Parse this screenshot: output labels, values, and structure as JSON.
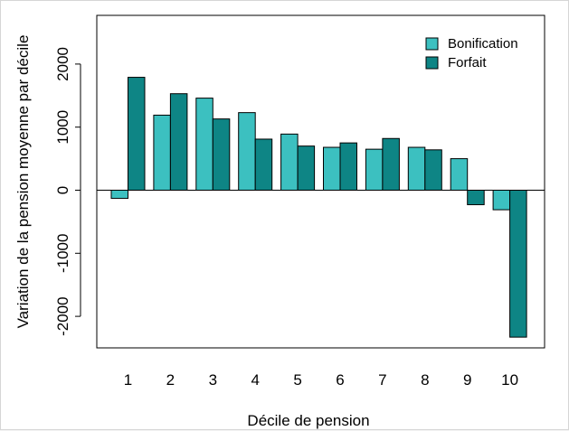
{
  "chart_data": {
    "type": "bar",
    "categories": [
      "1",
      "2",
      "3",
      "4",
      "5",
      "6",
      "7",
      "8",
      "9",
      "10"
    ],
    "series": [
      {
        "name": "Bonification",
        "color": "#3cc0c0",
        "values": [
          -130,
          1190,
          1460,
          1230,
          890,
          680,
          650,
          680,
          500,
          -310
        ]
      },
      {
        "name": "Forfait",
        "color": "#0e8585",
        "values": [
          1790,
          1530,
          1130,
          810,
          700,
          750,
          820,
          640,
          -230,
          -2330
        ]
      }
    ],
    "title": "",
    "xlabel": "Décile de pension",
    "ylabel": "Variation de la pension moyenne par décile",
    "ylim": [
      -2500,
      2500
    ],
    "yticks": [
      -2000,
      -1000,
      0,
      1000,
      2000
    ],
    "ytick_labels": [
      "-2000",
      "-1000",
      "0",
      "1000",
      "2000"
    ],
    "grid": false,
    "legend_position": "top-right",
    "zero_line": true
  }
}
